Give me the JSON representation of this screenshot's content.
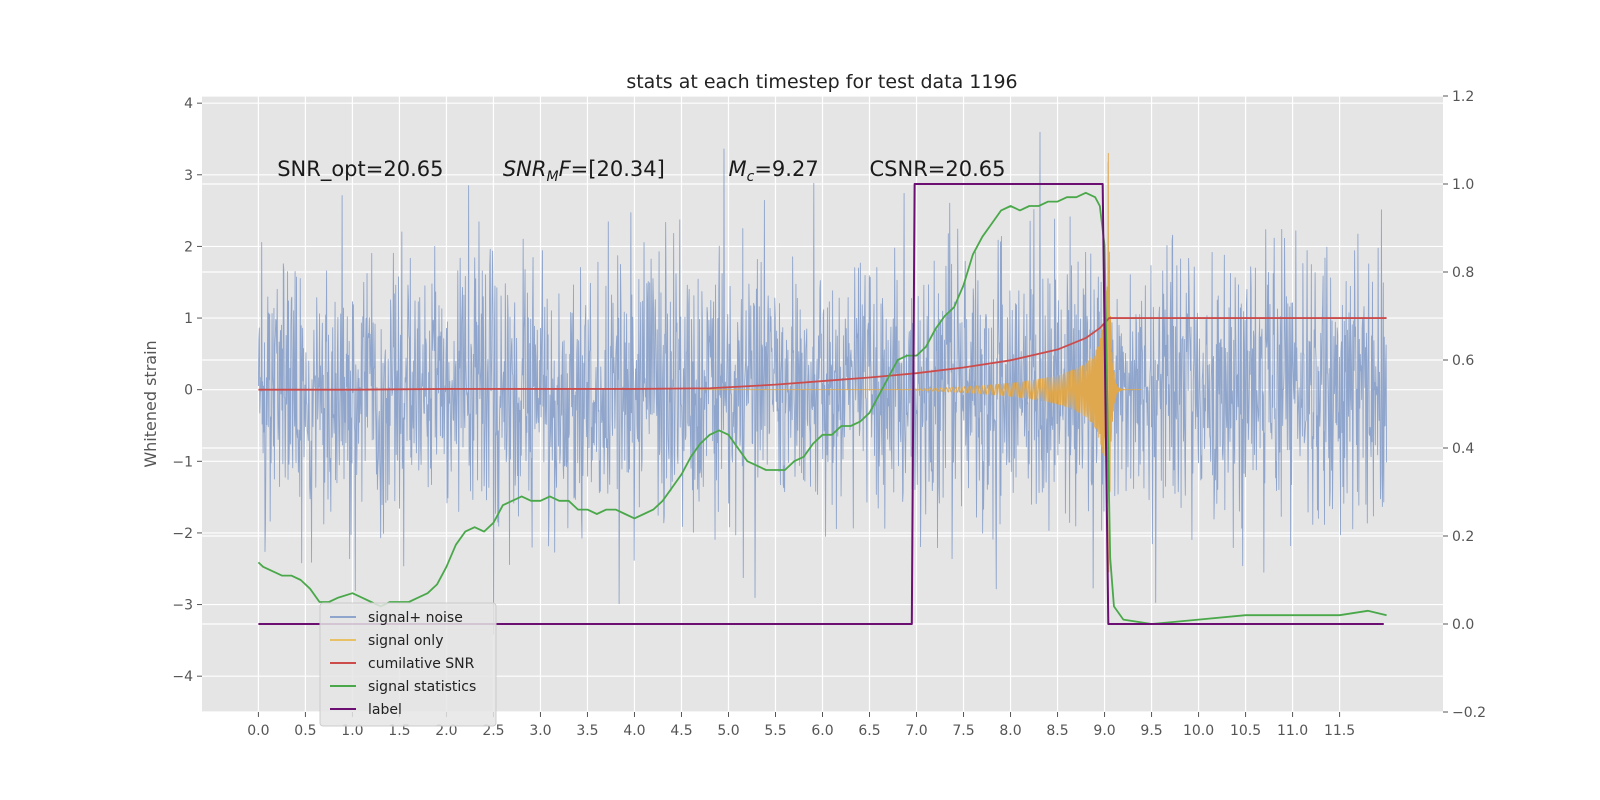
{
  "chart_data": {
    "type": "line",
    "title": "stats at each timestep for test data 1196",
    "xlabel": "",
    "ylabel": "Whitened strain",
    "y2label": "",
    "xlim": [
      -0.6,
      12.6
    ],
    "ylim": [
      -4.5,
      4.1
    ],
    "y2lim": [
      -0.2,
      1.2
    ],
    "xticks": [
      0.0,
      0.5,
      1.0,
      1.5,
      2.0,
      2.5,
      3.0,
      3.5,
      4.0,
      4.5,
      5.0,
      5.5,
      6.0,
      6.5,
      7.0,
      7.5,
      8.0,
      8.5,
      9.0,
      9.5,
      10.0,
      10.5,
      11.0,
      11.5
    ],
    "yticks": [
      -4,
      -3,
      -2,
      -1,
      0,
      1,
      2,
      3,
      4
    ],
    "y2ticks": [
      -0.2,
      0.0,
      0.2,
      0.4,
      0.6,
      0.8,
      1.0,
      1.2
    ],
    "grid": true,
    "legend_position": "lower-left",
    "annotations": [
      {
        "prefix": "SNR_opt=",
        "sym": "",
        "sub": "",
        "suffix": "",
        "value": "20.65",
        "x": 0.2,
        "y": 2.98
      },
      {
        "prefix": "",
        "sym": "SNR",
        "sub": "M",
        "suffix": "F=",
        "value": "[20.34]",
        "x": 2.6,
        "y": 2.98
      },
      {
        "prefix": "",
        "sym": "M",
        "sub": "c",
        "suffix": "=",
        "value": "9.27",
        "x": 5.0,
        "y": 2.98
      },
      {
        "prefix": "CSNR=",
        "sym": "",
        "sub": "",
        "suffix": "",
        "value": "20.65",
        "x": 6.5,
        "y": 2.98
      }
    ],
    "legend": [
      {
        "name": "signal+ noise",
        "color": "#8fa5cc"
      },
      {
        "name": "signal only",
        "color": "#e8c066"
      },
      {
        "name": "cumilative SNR",
        "color": "#cc4c4c"
      },
      {
        "name": "signal statistics",
        "color": "#4aa84a"
      },
      {
        "name": "label",
        "color": "#6b0f72"
      }
    ],
    "series": [
      {
        "name": "signal+ noise",
        "axis": "left",
        "style": "noise",
        "x_range": [
          0.0,
          12.0
        ],
        "amplitude_typical": 1.6,
        "amplitude_max": 3.9,
        "color": "#8fa5cc"
      },
      {
        "name": "signal only",
        "axis": "left",
        "style": "chirp",
        "x_range": [
          4.7,
          9.05
        ],
        "merger_x": 9.04,
        "peak_amplitude": 3.3,
        "color": "#e0a84e"
      },
      {
        "name": "cumilative SNR",
        "axis": "left",
        "x": [
          0.0,
          1.0,
          2.0,
          3.0,
          4.0,
          4.8,
          5.5,
          6.0,
          6.5,
          7.0,
          7.5,
          8.0,
          8.5,
          8.8,
          8.95,
          9.05,
          10.0,
          11.0,
          12.0
        ],
        "y": [
          0.0,
          0.0,
          0.01,
          0.01,
          0.01,
          0.02,
          0.07,
          0.12,
          0.17,
          0.23,
          0.31,
          0.41,
          0.56,
          0.72,
          0.86,
          1.0,
          1.0,
          1.0,
          1.0
        ],
        "color": "#cc4c4c"
      },
      {
        "name": "signal statistics",
        "axis": "right",
        "x": [
          0.0,
          0.05,
          0.15,
          0.25,
          0.35,
          0.45,
          0.55,
          0.65,
          0.75,
          0.85,
          1.0,
          1.1,
          1.2,
          1.3,
          1.4,
          1.5,
          1.6,
          1.7,
          1.8,
          1.9,
          2.0,
          2.1,
          2.2,
          2.3,
          2.4,
          2.5,
          2.6,
          2.7,
          2.8,
          2.9,
          3.0,
          3.1,
          3.2,
          3.3,
          3.4,
          3.5,
          3.6,
          3.7,
          3.8,
          3.9,
          4.0,
          4.1,
          4.2,
          4.3,
          4.4,
          4.5,
          4.6,
          4.7,
          4.8,
          4.9,
          5.0,
          5.1,
          5.2,
          5.3,
          5.4,
          5.5,
          5.6,
          5.7,
          5.8,
          5.9,
          6.0,
          6.1,
          6.2,
          6.3,
          6.4,
          6.5,
          6.6,
          6.7,
          6.8,
          6.9,
          7.0,
          7.1,
          7.2,
          7.3,
          7.4,
          7.5,
          7.6,
          7.7,
          7.8,
          7.9,
          8.0,
          8.1,
          8.2,
          8.3,
          8.4,
          8.5,
          8.6,
          8.7,
          8.8,
          8.9,
          8.95,
          9.0,
          9.03,
          9.06,
          9.1,
          9.2,
          9.5,
          10.0,
          10.5,
          11.0,
          11.5,
          11.8,
          12.0
        ],
        "y": [
          0.14,
          0.13,
          0.12,
          0.11,
          0.11,
          0.1,
          0.08,
          0.05,
          0.05,
          0.06,
          0.07,
          0.06,
          0.05,
          0.04,
          0.05,
          0.05,
          0.05,
          0.06,
          0.07,
          0.09,
          0.13,
          0.18,
          0.21,
          0.22,
          0.21,
          0.23,
          0.27,
          0.28,
          0.29,
          0.28,
          0.28,
          0.29,
          0.28,
          0.28,
          0.26,
          0.26,
          0.25,
          0.26,
          0.26,
          0.25,
          0.24,
          0.25,
          0.26,
          0.28,
          0.31,
          0.34,
          0.38,
          0.41,
          0.43,
          0.44,
          0.43,
          0.4,
          0.37,
          0.36,
          0.35,
          0.35,
          0.35,
          0.37,
          0.38,
          0.41,
          0.43,
          0.43,
          0.45,
          0.45,
          0.46,
          0.48,
          0.52,
          0.56,
          0.6,
          0.61,
          0.61,
          0.63,
          0.67,
          0.7,
          0.72,
          0.77,
          0.84,
          0.88,
          0.91,
          0.94,
          0.95,
          0.94,
          0.95,
          0.95,
          0.96,
          0.96,
          0.97,
          0.97,
          0.98,
          0.97,
          0.95,
          0.86,
          0.5,
          0.15,
          0.04,
          0.01,
          0.0,
          0.01,
          0.02,
          0.02,
          0.02,
          0.03,
          0.02
        ],
        "color": "#4aa84a"
      },
      {
        "name": "label",
        "axis": "right",
        "x": [
          0.0,
          6.95,
          6.98,
          8.98,
          9.04,
          11.97
        ],
        "y": [
          0.0,
          0.0,
          1.0,
          1.0,
          0.0,
          0.0
        ],
        "color": "#6b0f72"
      }
    ]
  }
}
